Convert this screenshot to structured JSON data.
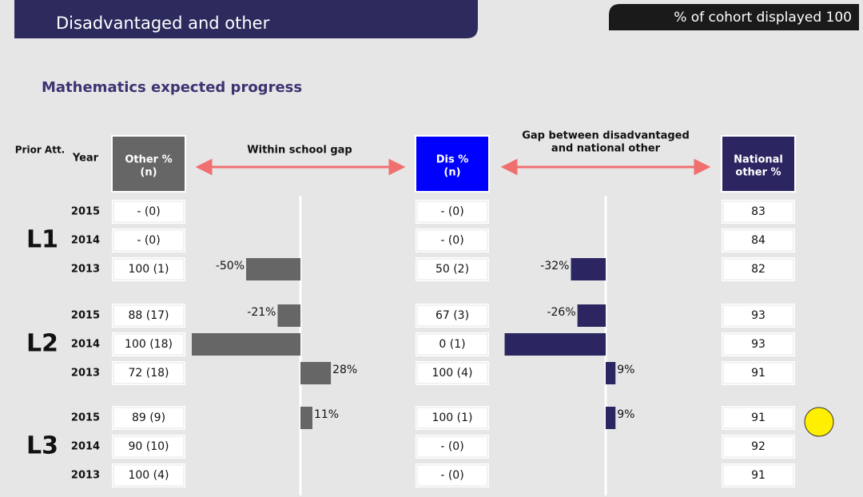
{
  "header": {
    "title": "Disadvantaged and other",
    "cohort_label": "% of cohort displayed",
    "cohort_value": 100
  },
  "section_title": "Mathematics expected progress",
  "columns": {
    "prior": "Prior Att.",
    "year": "Year",
    "other": [
      "Other %",
      "(n)"
    ],
    "within_gap": "Within school gap",
    "dis": [
      "Dis %",
      "(n)"
    ],
    "national_gap": [
      "Gap between disadvantaged",
      "and national other"
    ],
    "national": [
      "National",
      "other %"
    ]
  },
  "groups": [
    {
      "label": "L1",
      "rows": [
        {
          "year": 2015,
          "other": "- (0)",
          "dis": "- (0)",
          "national": 83,
          "within_gap": null,
          "national_gap": null
        },
        {
          "year": 2014,
          "other": "- (0)",
          "dis": "- (0)",
          "national": 84,
          "within_gap": null,
          "national_gap": null
        },
        {
          "year": 2013,
          "other": "100 (1)",
          "dis": "50 (2)",
          "national": 82,
          "within_gap": -50,
          "within_gap_label": "-50%",
          "national_gap": -32,
          "national_gap_label": "-32%"
        }
      ]
    },
    {
      "label": "L2",
      "rows": [
        {
          "year": 2015,
          "other": "88 (17)",
          "dis": "67 (3)",
          "national": 93,
          "within_gap": -21,
          "within_gap_label": "-21%",
          "national_gap": -26,
          "national_gap_label": "-26%"
        },
        {
          "year": 2014,
          "other": "100 (18)",
          "dis": "0 (1)",
          "national": 93,
          "within_gap": -100,
          "national_gap": -93
        },
        {
          "year": 2013,
          "other": "72 (18)",
          "dis": "100 (4)",
          "national": 91,
          "within_gap": 28,
          "within_gap_label": "28%",
          "national_gap": 9,
          "national_gap_label": "9%"
        }
      ]
    },
    {
      "label": "L3",
      "rows": [
        {
          "year": 2015,
          "other": "89 (9)",
          "dis": "100 (1)",
          "national": 91,
          "within_gap": 11,
          "within_gap_label": "11%",
          "national_gap": 9,
          "national_gap_label": "9%"
        },
        {
          "year": 2014,
          "other": "90 (10)",
          "dis": "- (0)",
          "national": 92,
          "within_gap": null,
          "national_gap": null
        },
        {
          "year": 2013,
          "other": "100 (4)",
          "dis": "- (0)",
          "national": 91,
          "within_gap": null,
          "national_gap": null
        }
      ]
    }
  ]
}
